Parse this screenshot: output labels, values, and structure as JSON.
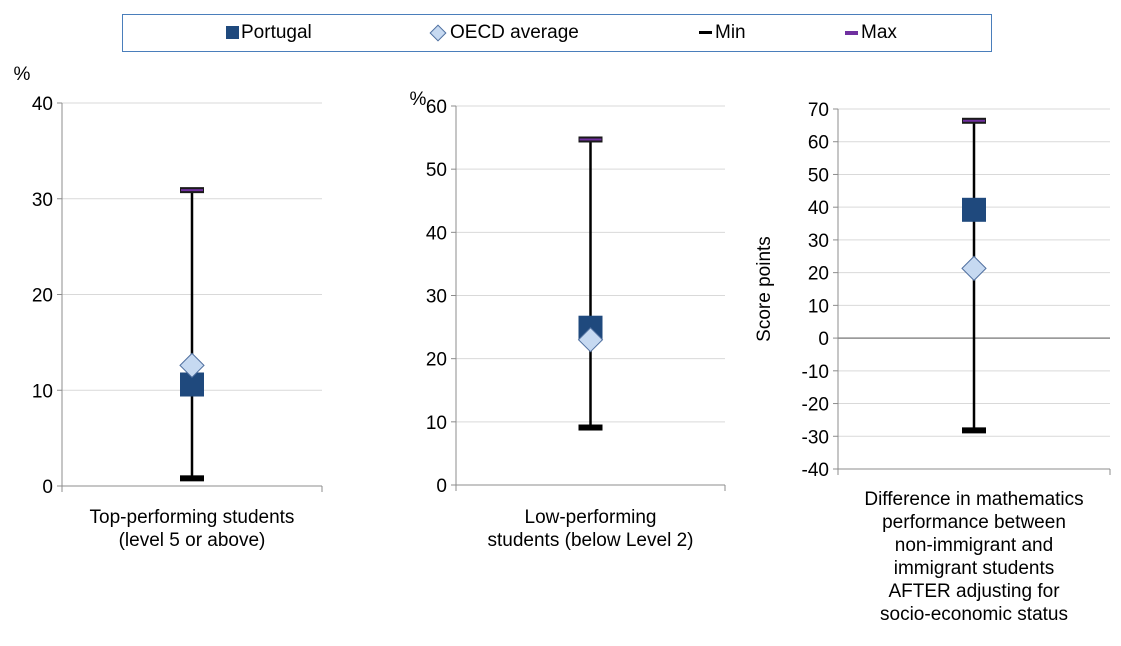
{
  "legend": {
    "portugal": "Portugal",
    "oecd": "OECD average",
    "min": "Min",
    "max": "Max"
  },
  "colors": {
    "portugal": "#1f497d",
    "oecd": "#c6d9f1",
    "max": "#7030a0",
    "grid": "#d9d9d9"
  },
  "chart_data": [
    {
      "type": "scatter",
      "y_unit_label": "%",
      "ylim": [
        0,
        40
      ],
      "yticks": [
        "0",
        "10",
        "20",
        "30",
        "40"
      ],
      "category_label": [
        "Top-performing students",
        "(level 5 or above)"
      ],
      "series": [
        {
          "name": "Portugal",
          "value": 10.6
        },
        {
          "name": "OECD average",
          "value": 12.6
        },
        {
          "name": "Min",
          "value": 0.8
        },
        {
          "name": "Max",
          "value": 30.9
        }
      ]
    },
    {
      "type": "scatter",
      "y_unit_label": "%",
      "ylim": [
        0,
        60
      ],
      "yticks": [
        "0",
        "10",
        "20",
        "30",
        "40",
        "50",
        "60"
      ],
      "category_label": [
        "Low-performing",
        "students (below Level 2)"
      ],
      "series": [
        {
          "name": "Portugal",
          "value": 24.9
        },
        {
          "name": "OECD average",
          "value": 23.0
        },
        {
          "name": "Min",
          "value": 9.1
        },
        {
          "name": "Max",
          "value": 54.7
        }
      ]
    },
    {
      "type": "scatter",
      "y_axis_title": "Score points",
      "ylim": [
        -40,
        70
      ],
      "yticks": [
        "-40",
        "-30",
        "-20",
        "-10",
        "0",
        "10",
        "20",
        "30",
        "40",
        "50",
        "60",
        "70"
      ],
      "category_label": [
        "Difference in mathematics",
        "performance between",
        "non-immigrant and",
        "immigrant students",
        "AFTER adjusting for",
        "socio-economic status"
      ],
      "series": [
        {
          "name": "Portugal",
          "value": 39.2
        },
        {
          "name": "OECD average",
          "value": 21.3
        },
        {
          "name": "Min",
          "value": -28.2
        },
        {
          "name": "Max",
          "value": 66.4
        }
      ]
    }
  ]
}
